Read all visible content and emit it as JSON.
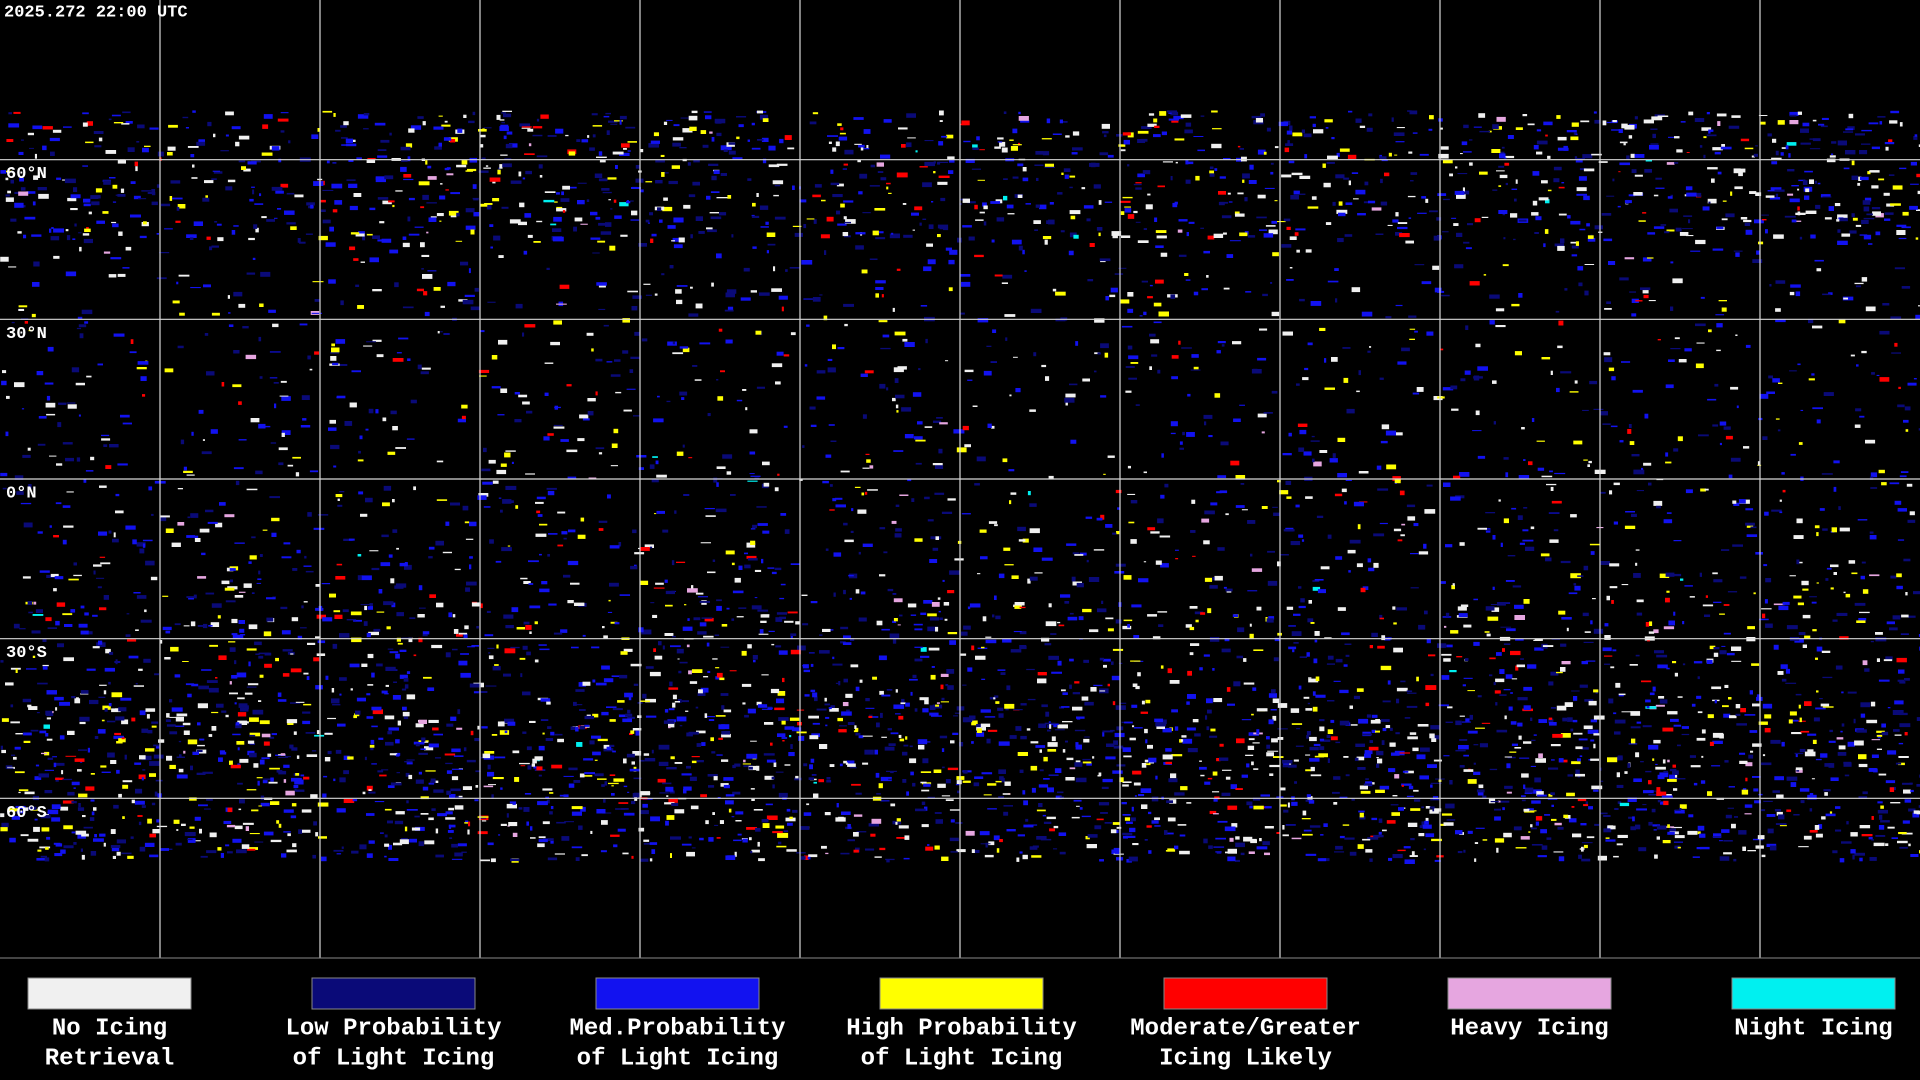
{
  "timestamp": "2025.272 22:00 UTC",
  "latitude_labels": [
    "60°N",
    "30°N",
    "0°N",
    "30°S",
    "60°S"
  ],
  "legend": [
    {
      "lines": [
        "No Icing",
        "Retrieval"
      ],
      "color": "#f0f0f0"
    },
    {
      "lines": [
        "Low Probability",
        "of Light Icing"
      ],
      "color": "#0a0a78"
    },
    {
      "lines": [
        "Med.Probability",
        "of Light Icing"
      ],
      "color": "#1212f0"
    },
    {
      "lines": [
        "High Probability",
        "of Light Icing"
      ],
      "color": "#ffff00"
    },
    {
      "lines": [
        "Moderate/Greater",
        "Icing Likely"
      ],
      "color": "#ff0000"
    },
    {
      "lines": [
        "Heavy Icing"
      ],
      "color": "#e6a6e0"
    },
    {
      "lines": [
        "Night Icing"
      ],
      "color": "#00f0f0"
    }
  ]
}
